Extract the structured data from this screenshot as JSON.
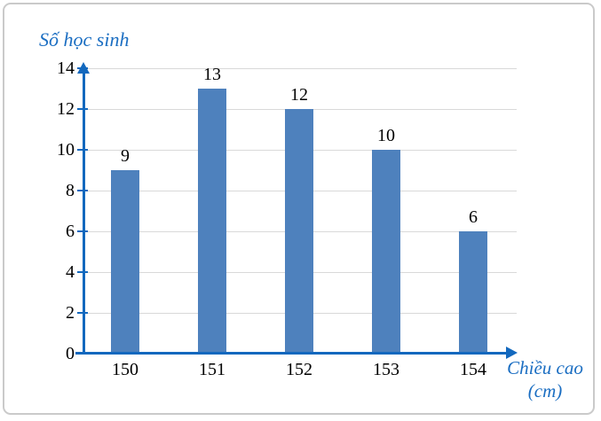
{
  "chart_data": {
    "type": "bar",
    "ylabel": "Số học sinh",
    "xlabel": "Chiều cao (cm)",
    "xlabel_line1": "Chiều cao",
    "xlabel_line2": "(cm)",
    "categories": [
      "150",
      "151",
      "152",
      "153",
      "154"
    ],
    "values": [
      9,
      13,
      12,
      10,
      6
    ],
    "data_labels": [
      "9",
      "13",
      "12",
      "10",
      "6"
    ],
    "y_ticks": [
      0,
      2,
      4,
      6,
      8,
      10,
      12,
      14
    ],
    "ylim": [
      0,
      14
    ],
    "grid": "horizontal",
    "legend_position": "none",
    "axis_arrows": "up-and-right",
    "colors": {
      "bar": "#4E81BD",
      "axis": "#1268BE",
      "gridline": "#D9D9D9",
      "tick_label": "#000000",
      "title": "#1B6EC2",
      "frame_border": "#CACACA",
      "background": "#FFFFFF"
    }
  }
}
